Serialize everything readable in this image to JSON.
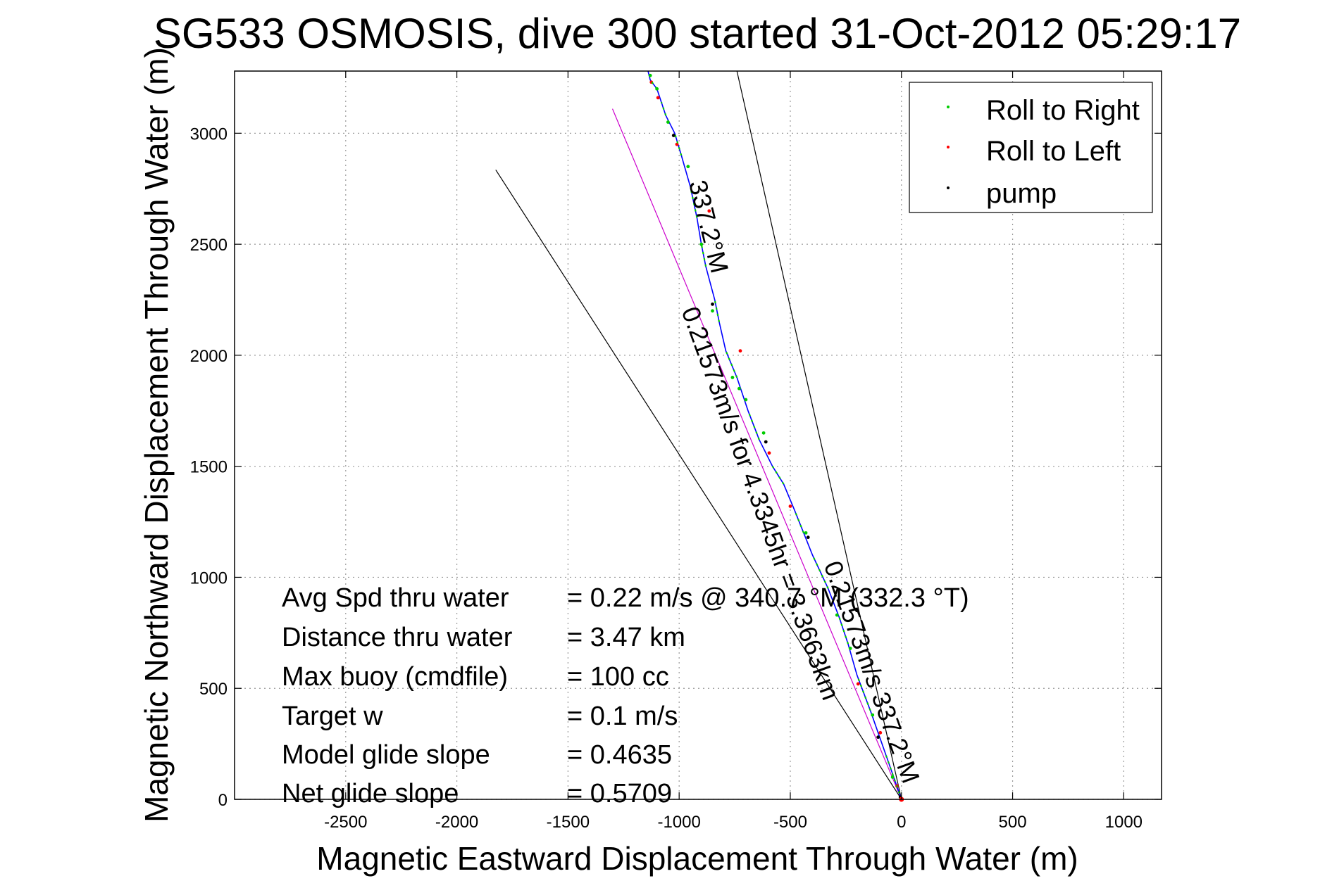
{
  "chart_data": {
    "type": "line",
    "title": "SG533 OSMOSIS, dive 300 started 31-Oct-2012 05:29:17",
    "xlabel": "Magnetic Eastward Displacement Through Water (m)",
    "ylabel": "Magnetic Northward Displacement Through Water (m)",
    "xlim": [
      -3000,
      1170
    ],
    "ylim": [
      0,
      3280
    ],
    "x_ticks": [
      -2500,
      -2000,
      -1500,
      -1000,
      -500,
      0,
      500,
      1000
    ],
    "y_ticks": [
      0,
      500,
      1000,
      1500,
      2000,
      2500,
      3000
    ],
    "grid": true,
    "legend_placement": "top-right",
    "legend": [
      {
        "label": "Roll to Right",
        "color": "#00cc00"
      },
      {
        "label": "Roll to Left",
        "color": "#ff0000"
      },
      {
        "label": "pump",
        "color": "#000000"
      }
    ],
    "series": [
      {
        "kind": "track",
        "color": "#0000ff",
        "x": [
          0,
          -70,
          -140,
          -200,
          -240,
          -280,
          -330,
          -400,
          -440,
          -480,
          -530,
          -580,
          -640,
          -690,
          -740,
          -790,
          -820,
          -840,
          -880,
          -900,
          -920,
          -950,
          -990,
          -1020,
          -1060,
          -1080,
          -1100,
          -1130,
          -1140
        ],
        "y": [
          0,
          200,
          400,
          560,
          700,
          820,
          950,
          1100,
          1200,
          1300,
          1420,
          1500,
          1620,
          1750,
          1900,
          2020,
          2150,
          2250,
          2400,
          2500,
          2620,
          2760,
          2900,
          3000,
          3080,
          3140,
          3200,
          3240,
          3280
        ]
      },
      {
        "kind": "reference-line",
        "color": "#cc00cc",
        "x": [
          0,
          -1300
        ],
        "y": [
          0,
          3110
        ]
      },
      {
        "kind": "reference-line",
        "color": "#000000",
        "x": [
          0,
          -1825
        ],
        "y": [
          0,
          2835
        ]
      },
      {
        "kind": "reference-line",
        "color": "#000000",
        "x": [
          0,
          -740
        ],
        "y": [
          0,
          3280
        ]
      }
    ],
    "marker_points": {
      "roll_right": {
        "color": "#00cc00",
        "x": [
          -40,
          -130,
          -230,
          -290,
          -430,
          -620,
          -700,
          -730,
          -760,
          -850,
          -900,
          -960,
          -1050,
          -1100,
          -1130
        ],
        "y": [
          100,
          380,
          680,
          830,
          1200,
          1650,
          1800,
          1850,
          1900,
          2200,
          2500,
          2850,
          3050,
          3200,
          3260
        ]
      },
      "roll_left": {
        "color": "#ff0000",
        "x": [
          -20,
          -95,
          -195,
          -500,
          -595,
          -725,
          -865,
          -1010,
          -1095,
          -1125
        ],
        "y": [
          60,
          300,
          520,
          1320,
          1560,
          2020,
          2650,
          2950,
          3160,
          3230
        ]
      },
      "pump": {
        "color": "#000000",
        "x": [
          -5,
          -105,
          -420,
          -610,
          -850,
          -1025
        ],
        "y": [
          10,
          280,
          1180,
          1610,
          2230,
          2990
        ]
      }
    },
    "annotations": [
      {
        "text": "337.2°M",
        "x": -905,
        "y": 2570,
        "rotation": 76
      },
      {
        "text": "0.21573m/s for 4.3345hr = 3.3663km",
        "x": -670,
        "y": 1320,
        "rotation": 70
      },
      {
        "text": "0.21573m/s 337.2°M",
        "x": -170,
        "y": 560,
        "rotation": 70
      }
    ]
  },
  "stats": [
    {
      "label": "Avg Spd thru water",
      "value": "=  0.22 m/s @ 340.7 °M (332.3 °T)"
    },
    {
      "label": "Distance thru water",
      "value": "=  3.47 km"
    },
    {
      "label": "Max buoy (cmdfile)",
      "value": "= 100 cc"
    },
    {
      "label": "Target w",
      "value": "= 0.1 m/s"
    },
    {
      "label": "Model glide slope",
      "value": "= 0.4635"
    },
    {
      "label": "Net glide slope",
      "value": "= 0.5709"
    }
  ]
}
